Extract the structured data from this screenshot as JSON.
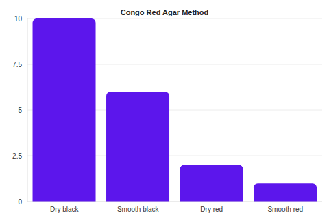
{
  "chart_data": {
    "type": "bar",
    "title": "Congo Red Agar Method",
    "categories": [
      "Dry black",
      "Smooth black",
      "Dry red",
      "Smooth red"
    ],
    "values": [
      10,
      6,
      2,
      1
    ],
    "color": "#5c16ec",
    "ylim": [
      0,
      10
    ],
    "yticks": [
      0,
      2.5,
      5,
      7.5,
      10
    ],
    "grid": true
  }
}
